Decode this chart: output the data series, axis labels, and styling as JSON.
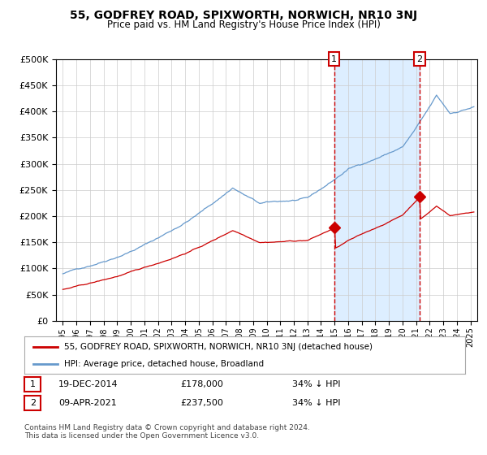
{
  "title": "55, GODFREY ROAD, SPIXWORTH, NORWICH, NR10 3NJ",
  "subtitle": "Price paid vs. HM Land Registry's House Price Index (HPI)",
  "legend_line1": "55, GODFREY ROAD, SPIXWORTH, NORWICH, NR10 3NJ (detached house)",
  "legend_line2": "HPI: Average price, detached house, Broadland",
  "annotation1_label": "1",
  "annotation1_date": "19-DEC-2014",
  "annotation1_price": "£178,000",
  "annotation1_note": "34% ↓ HPI",
  "annotation2_label": "2",
  "annotation2_date": "09-APR-2021",
  "annotation2_price": "£237,500",
  "annotation2_note": "34% ↓ HPI",
  "footer": "Contains HM Land Registry data © Crown copyright and database right 2024.\nThis data is licensed under the Open Government Licence v3.0.",
  "red_line_color": "#cc0000",
  "blue_line_color": "#6699cc",
  "blue_fill_color": "#ddeeff",
  "dashed_line_color": "#cc0000",
  "annotation_box_color": "#cc0000",
  "grid_color": "#cccccc",
  "bg_color": "#ffffff",
  "ylim": [
    0,
    500000
  ],
  "yticks": [
    0,
    50000,
    100000,
    150000,
    200000,
    250000,
    300000,
    350000,
    400000,
    450000,
    500000
  ],
  "sale1_year": 2014.96,
  "sale1_value": 178000,
  "sale2_year": 2021.27,
  "sale2_value": 237500
}
